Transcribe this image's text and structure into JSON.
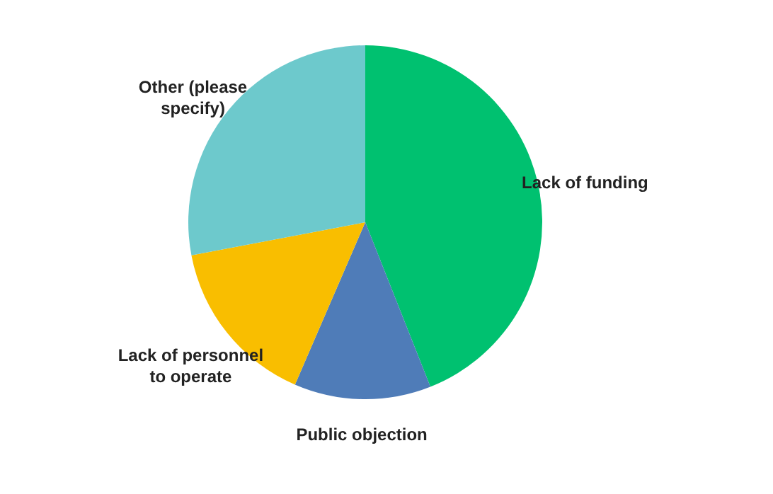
{
  "chart_data": {
    "type": "pie",
    "categories": [
      "Lack of funding",
      "Public objection",
      "Lack of personnel to operate",
      "Other (please specify)"
    ],
    "values": [
      44,
      12.5,
      15.5,
      28
    ],
    "colors": [
      "#00c170",
      "#4f7cb8",
      "#f9be00",
      "#6dc9cc"
    ]
  }
}
